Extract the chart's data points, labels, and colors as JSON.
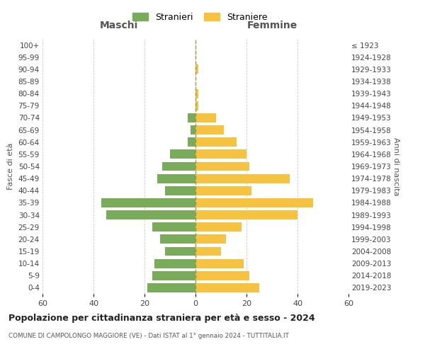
{
  "age_groups": [
    "0-4",
    "5-9",
    "10-14",
    "15-19",
    "20-24",
    "25-29",
    "30-34",
    "35-39",
    "40-44",
    "45-49",
    "50-54",
    "55-59",
    "60-64",
    "65-69",
    "70-74",
    "75-79",
    "80-84",
    "85-89",
    "90-94",
    "95-99",
    "100+"
  ],
  "birth_years": [
    "2019-2023",
    "2014-2018",
    "2009-2013",
    "2004-2008",
    "1999-2003",
    "1994-1998",
    "1989-1993",
    "1984-1988",
    "1979-1983",
    "1974-1978",
    "1969-1973",
    "1964-1968",
    "1959-1963",
    "1954-1958",
    "1949-1953",
    "1944-1948",
    "1939-1943",
    "1934-1938",
    "1929-1933",
    "1924-1928",
    "≤ 1923"
  ],
  "males": [
    19,
    17,
    16,
    12,
    14,
    17,
    35,
    37,
    12,
    15,
    13,
    10,
    3,
    2,
    3,
    0,
    0,
    0,
    0,
    0,
    0
  ],
  "females": [
    25,
    21,
    19,
    10,
    12,
    18,
    40,
    46,
    22,
    37,
    21,
    20,
    16,
    11,
    8,
    1,
    1,
    0,
    1,
    0,
    0
  ],
  "male_color": "#7aab5a",
  "female_color": "#f5c242",
  "title": "Popolazione per cittadinanza straniera per età e sesso - 2024",
  "subtitle": "COMUNE DI CAMPOLONGO MAGGIORE (VE) - Dati ISTAT al 1° gennaio 2024 - TUTTITALIA.IT",
  "legend_male": "Stranieri",
  "legend_female": "Straniere",
  "xlabel_left": "Maschi",
  "xlabel_right": "Femmine",
  "ylabel_left": "Fasce di età",
  "ylabel_right": "Anni di nascita",
  "xlim": 60,
  "bg_color": "#ffffff",
  "grid_color": "#cccccc",
  "center_line_color": "#999944"
}
